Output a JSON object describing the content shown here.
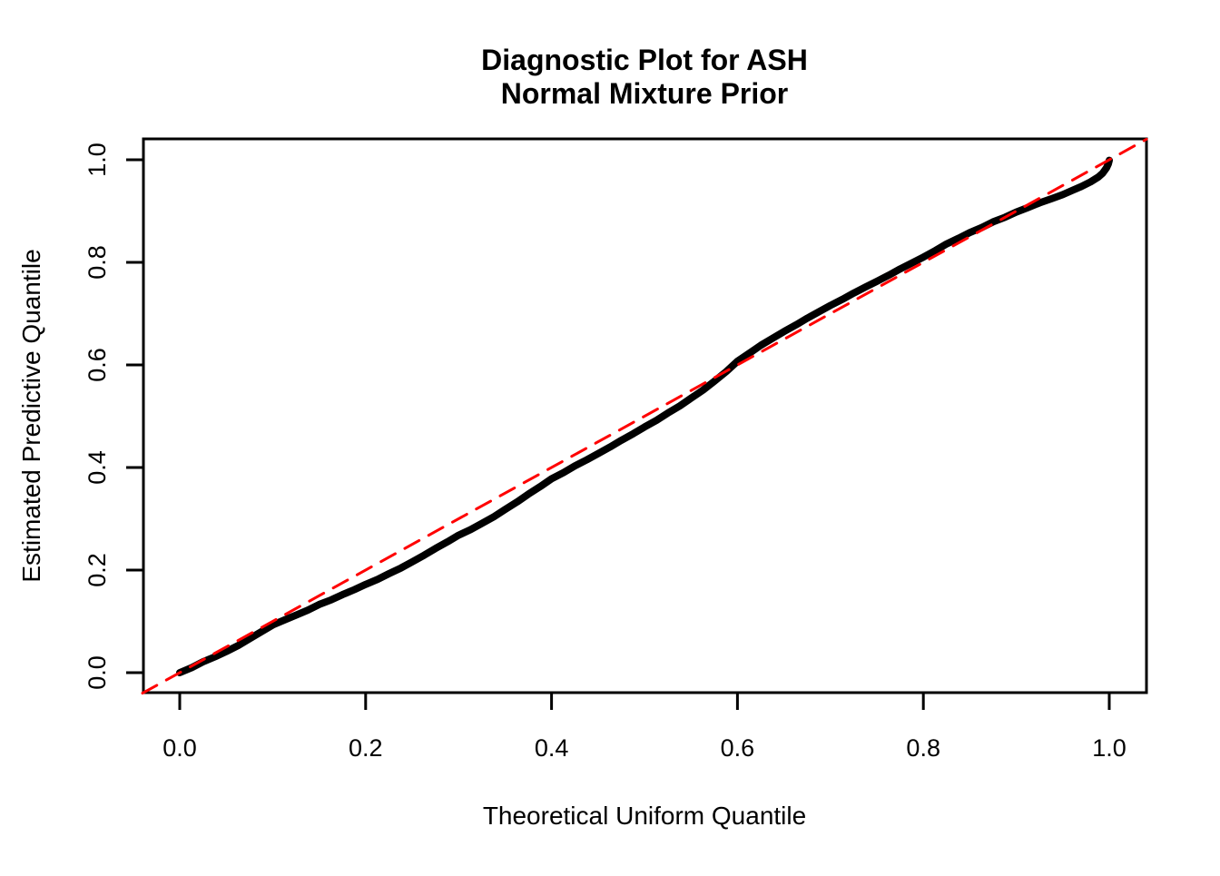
{
  "title": {
    "line1": "Diagnostic Plot for ASH",
    "line2": "Normal Mixture Prior"
  },
  "chart_data": {
    "type": "line",
    "title": "Diagnostic Plot for ASH Normal Mixture Prior",
    "xlabel": "Theoretical Uniform Quantile",
    "ylabel": "Estimated Predictive Quantile",
    "xlim": [
      0,
      1
    ],
    "ylim": [
      0,
      1
    ],
    "grid": false,
    "legend": "none",
    "xticks": [
      {
        "value": 0.0,
        "label": "0.0"
      },
      {
        "value": 0.2,
        "label": "0.2"
      },
      {
        "value": 0.4,
        "label": "0.4"
      },
      {
        "value": 0.6,
        "label": "0.6"
      },
      {
        "value": 0.8,
        "label": "0.8"
      },
      {
        "value": 1.0,
        "label": "1.0"
      }
    ],
    "yticks": [
      {
        "value": 0.0,
        "label": "0.0"
      },
      {
        "value": 0.2,
        "label": "0.2"
      },
      {
        "value": 0.4,
        "label": "0.4"
      },
      {
        "value": 0.6,
        "label": "0.6"
      },
      {
        "value": 0.8,
        "label": "0.8"
      },
      {
        "value": 1.0,
        "label": "1.0"
      }
    ],
    "series": [
      {
        "name": "estimated-predictive-quantile-curve",
        "style": "solid",
        "color": "#000000",
        "line_width": 8,
        "points": [
          [
            0.0,
            0.0
          ],
          [
            0.013,
            0.01
          ],
          [
            0.025,
            0.021
          ],
          [
            0.038,
            0.031
          ],
          [
            0.05,
            0.041
          ],
          [
            0.063,
            0.053
          ],
          [
            0.075,
            0.066
          ],
          [
            0.088,
            0.08
          ],
          [
            0.1,
            0.093
          ],
          [
            0.113,
            0.103
          ],
          [
            0.125,
            0.112
          ],
          [
            0.138,
            0.122
          ],
          [
            0.15,
            0.133
          ],
          [
            0.163,
            0.142
          ],
          [
            0.175,
            0.152
          ],
          [
            0.188,
            0.162
          ],
          [
            0.2,
            0.172
          ],
          [
            0.213,
            0.182
          ],
          [
            0.225,
            0.193
          ],
          [
            0.238,
            0.204
          ],
          [
            0.25,
            0.216
          ],
          [
            0.263,
            0.229
          ],
          [
            0.275,
            0.242
          ],
          [
            0.288,
            0.255
          ],
          [
            0.3,
            0.268
          ],
          [
            0.313,
            0.279
          ],
          [
            0.325,
            0.291
          ],
          [
            0.338,
            0.304
          ],
          [
            0.35,
            0.318
          ],
          [
            0.363,
            0.333
          ],
          [
            0.375,
            0.348
          ],
          [
            0.388,
            0.363
          ],
          [
            0.4,
            0.378
          ],
          [
            0.413,
            0.39
          ],
          [
            0.425,
            0.403
          ],
          [
            0.438,
            0.415
          ],
          [
            0.45,
            0.427
          ],
          [
            0.463,
            0.44
          ],
          [
            0.475,
            0.453
          ],
          [
            0.488,
            0.466
          ],
          [
            0.5,
            0.479
          ],
          [
            0.513,
            0.492
          ],
          [
            0.525,
            0.506
          ],
          [
            0.538,
            0.52
          ],
          [
            0.55,
            0.535
          ],
          [
            0.563,
            0.551
          ],
          [
            0.575,
            0.568
          ],
          [
            0.588,
            0.587
          ],
          [
            0.6,
            0.607
          ],
          [
            0.613,
            0.623
          ],
          [
            0.625,
            0.638
          ],
          [
            0.638,
            0.652
          ],
          [
            0.65,
            0.665
          ],
          [
            0.663,
            0.678
          ],
          [
            0.675,
            0.691
          ],
          [
            0.688,
            0.704
          ],
          [
            0.7,
            0.716
          ],
          [
            0.713,
            0.728
          ],
          [
            0.725,
            0.74
          ],
          [
            0.738,
            0.752
          ],
          [
            0.75,
            0.763
          ],
          [
            0.763,
            0.775
          ],
          [
            0.775,
            0.787
          ],
          [
            0.788,
            0.799
          ],
          [
            0.8,
            0.81
          ],
          [
            0.813,
            0.823
          ],
          [
            0.825,
            0.836
          ],
          [
            0.838,
            0.847
          ],
          [
            0.85,
            0.858
          ],
          [
            0.863,
            0.868
          ],
          [
            0.875,
            0.879
          ],
          [
            0.888,
            0.888
          ],
          [
            0.9,
            0.898
          ],
          [
            0.913,
            0.907
          ],
          [
            0.925,
            0.916
          ],
          [
            0.938,
            0.924
          ],
          [
            0.95,
            0.932
          ],
          [
            0.96,
            0.94
          ],
          [
            0.97,
            0.948
          ],
          [
            0.98,
            0.957
          ],
          [
            0.988,
            0.966
          ],
          [
            0.993,
            0.974
          ],
          [
            0.997,
            0.984
          ],
          [
            0.999,
            0.992
          ],
          [
            1.0,
            0.999
          ]
        ]
      },
      {
        "name": "reference-line-y-equals-x",
        "style": "dashed",
        "color": "#FF0000",
        "line_width": 3,
        "points": [
          [
            -0.04,
            -0.04
          ],
          [
            1.04,
            1.04
          ]
        ]
      }
    ]
  },
  "colors": {
    "background": "#FFFFFF",
    "foreground": "#000000",
    "reference_red": "#FF0000"
  }
}
